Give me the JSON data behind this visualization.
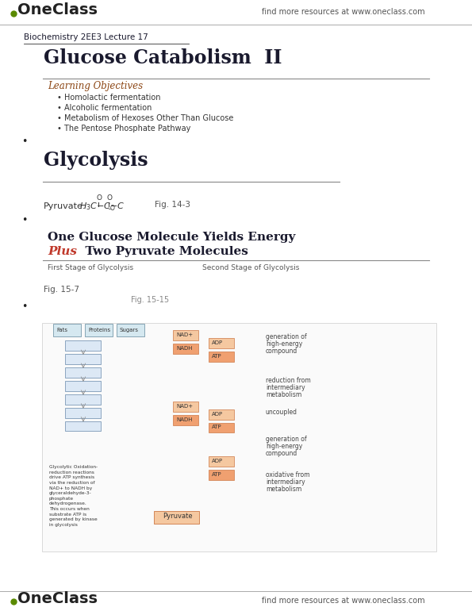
{
  "bg_color": "#ffffff",
  "header_logo_text": "OneClass",
  "header_right_text": "find more resources at www.oneclass.com",
  "footer_logo_text": "OneClass",
  "footer_right_text": "find more resources at www.oneclass.com",
  "breadcrumb": "Biochemistry 2EE3 Lecture 17",
  "title1": "Glucose Catabolism  II",
  "learning_objectives_header": "Learning Objectives",
  "objectives": [
    "Homolactic fermentation",
    "Alcoholic fermentation",
    "Metabolism of Hexoses Other Than Glucose",
    "The Pentose Phosphate Pathway"
  ],
  "section2_title": "Glycolysis",
  "pyruvate_label": "Pyruvate:",
  "fig_ref1": "Fig. 14-3",
  "section3_line1": "One Glucose Molecule Yields Energy",
  "section3_line2_plain": "Two Pyruvate Molecules",
  "section3_line2_italic": "Plus",
  "first_stage": "First Stage of Glycolysis",
  "second_stage": "Second Stage of Glycolysis",
  "fig_ref2": "Fig. 15-7",
  "fig_ref3": "Fig. 15-15",
  "accent_color": "#c0392b",
  "link_color": "#8B4513",
  "text_color": "#1a1a2e",
  "gray_text": "#555555",
  "logo_green": "#5a8a00",
  "header_separator_color": "#cccccc"
}
